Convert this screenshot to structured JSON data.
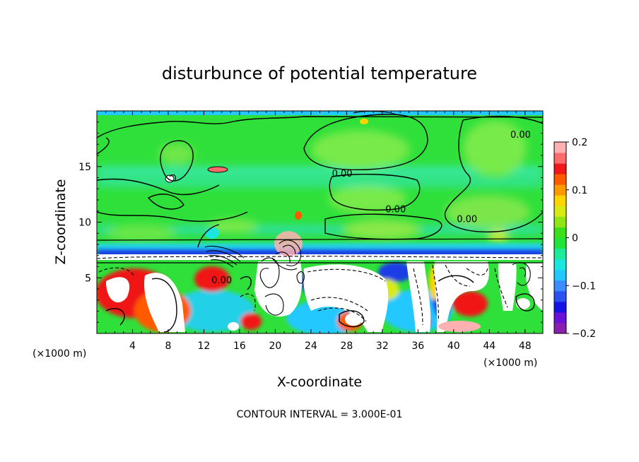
{
  "chart_data": {
    "type": "heatmap",
    "title": "disturbunce of potential temperature",
    "xlabel": "X-coordinate",
    "ylabel": "Z-coordinate",
    "x_unit_label": "(×1000 m)",
    "x_unit_label_right": "(×1000 m)",
    "xlim": [
      0,
      50
    ],
    "ylim": [
      0,
      20
    ],
    "x_ticks": [
      4,
      8,
      12,
      16,
      20,
      24,
      28,
      32,
      36,
      40,
      44,
      48
    ],
    "y_ticks": [
      5,
      10,
      15
    ],
    "colorbar": {
      "range": [
        -0.2,
        0.2
      ],
      "tick_values": [
        0.2,
        0.1,
        0,
        -0.1,
        -0.2
      ],
      "tick_labels": [
        "0.2",
        "0.1",
        "0",
        "−0.1",
        "−0.2"
      ],
      "colors": [
        "#8a1fb0",
        "#6a12d8",
        "#1414e6",
        "#2a52f0",
        "#3a8cff",
        "#22c8ff",
        "#1ae6e0",
        "#1eeb9a",
        "#1fe53a",
        "#3ce01a",
        "#8fe614",
        "#d8ea14",
        "#ffd400",
        "#ff9a00",
        "#ff5a00",
        "#f01818",
        "#ff6a6a",
        "#ffb0b0"
      ]
    },
    "contour_labels": [
      {
        "text": "0.00",
        "x": 27.5,
        "z": 14.1
      },
      {
        "text": "0.00",
        "x": 33.5,
        "z": 10.9
      },
      {
        "text": "0.00",
        "x": 41.5,
        "z": 10.0
      },
      {
        "text": "0.00",
        "x": 47.5,
        "z": 17.6
      },
      {
        "text": "0.00",
        "x": 14.0,
        "z": 4.5
      }
    ],
    "footer": "CONTOUR INTERVAL = 3.000E-01"
  },
  "colors": {
    "background_green": "#2fe03a",
    "light_green": "#7ee84a",
    "cyan": "#2ad8d8",
    "blue": "#1a3ce6",
    "white": "#ffffff",
    "red": "#f01818",
    "pink": "#ffb0b0"
  }
}
